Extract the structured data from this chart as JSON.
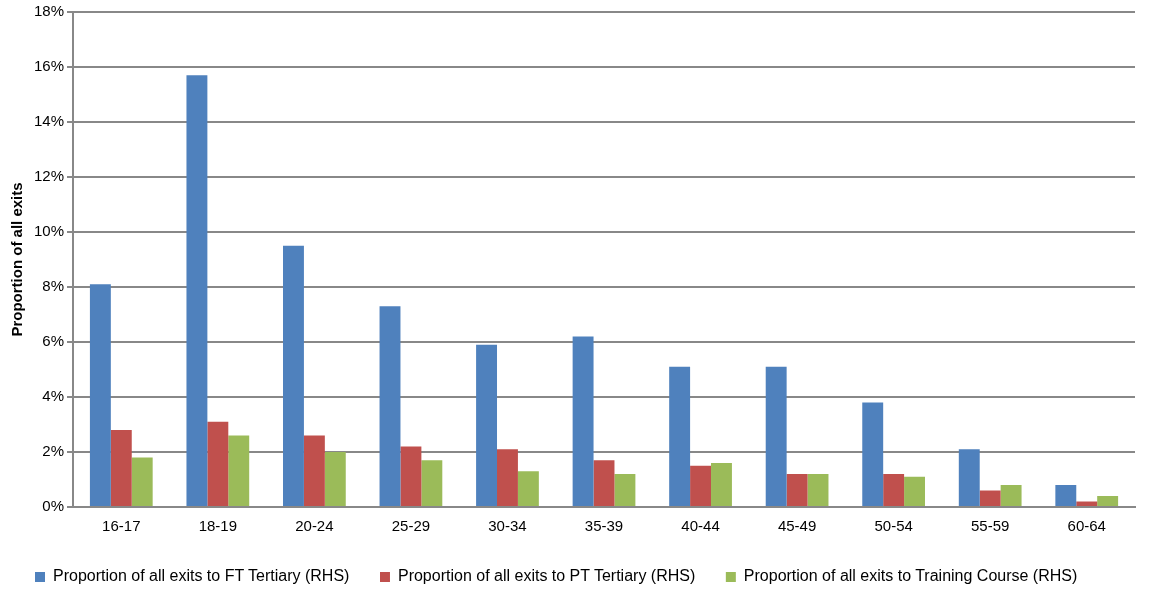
{
  "chart_data": {
    "type": "bar",
    "ylabel": "Proportion of all exits",
    "categories": [
      "16-17",
      "18-19",
      "20-24",
      "25-29",
      "30-34",
      "35-39",
      "40-44",
      "45-49",
      "50-54",
      "55-59",
      "60-64"
    ],
    "series": [
      {
        "name": "Proportion of all exits to FT Tertiary (RHS)",
        "color": "#4f81bd",
        "values": [
          8.1,
          15.7,
          9.5,
          7.3,
          5.9,
          6.2,
          5.1,
          5.1,
          3.8,
          2.1,
          0.8
        ]
      },
      {
        "name": "Proportion of all exits to PT Tertiary (RHS)",
        "color": "#c0504d",
        "values": [
          2.8,
          3.1,
          2.6,
          2.2,
          2.1,
          1.7,
          1.5,
          1.2,
          1.2,
          0.6,
          0.2
        ]
      },
      {
        "name": "Proportion of all exits to Training Course (RHS)",
        "color": "#9bbb59",
        "values": [
          1.8,
          2.6,
          2.0,
          1.7,
          1.3,
          1.2,
          1.6,
          1.2,
          1.1,
          0.8,
          0.4
        ]
      }
    ],
    "ylim": [
      0,
      18
    ],
    "yticks": [
      {
        "value": 0,
        "label": "0%"
      },
      {
        "value": 2,
        "label": "2%"
      },
      {
        "value": 4,
        "label": "4%"
      },
      {
        "value": 6,
        "label": "6%"
      },
      {
        "value": 8,
        "label": "8%"
      },
      {
        "value": 10,
        "label": "10%"
      },
      {
        "value": 12,
        "label": "12%"
      },
      {
        "value": 14,
        "label": "14%"
      },
      {
        "value": 16,
        "label": "16%"
      },
      {
        "value": 18,
        "label": "18%"
      }
    ],
    "grid": "y",
    "legend": "bottom"
  }
}
